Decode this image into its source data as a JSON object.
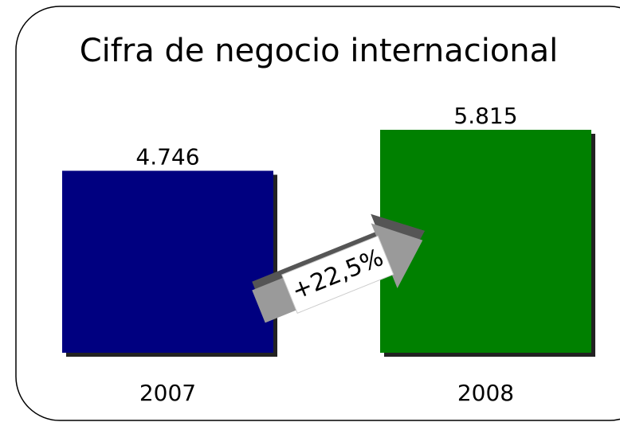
{
  "chart_data": {
    "type": "bar",
    "title": "Cifra de negocio internacional",
    "categories": [
      "2007",
      "2008"
    ],
    "values": [
      4746,
      5815
    ],
    "value_labels": [
      "4.746",
      "5.815"
    ],
    "colors": [
      "#000080",
      "#008000"
    ],
    "annotation": "+22,5%"
  }
}
